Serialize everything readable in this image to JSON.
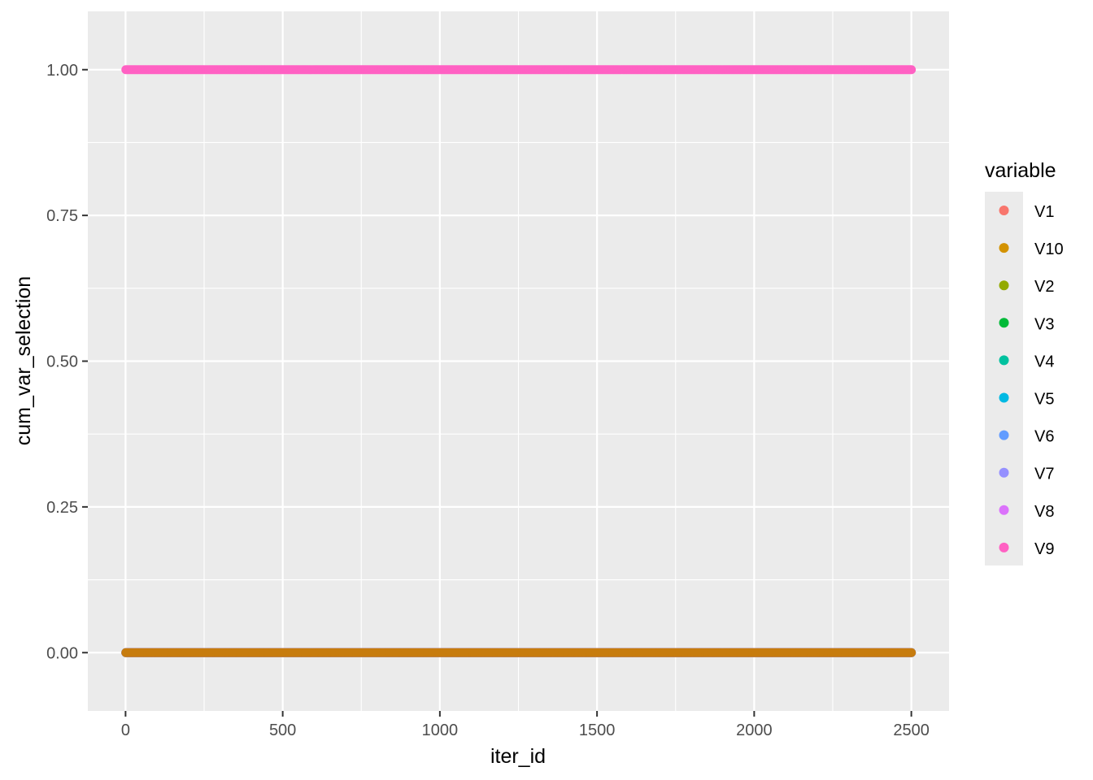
{
  "chart_data": {
    "type": "scatter",
    "title": "",
    "xlabel": "iter_id",
    "ylabel": "cum_var_selection",
    "xlim": [
      -120,
      2620
    ],
    "ylim": [
      -0.1,
      1.1
    ],
    "x_ticks": [
      0,
      500,
      1000,
      1500,
      2000,
      2500
    ],
    "x_tick_labels": [
      "0",
      "500",
      "1000",
      "1500",
      "2000",
      "2500"
    ],
    "y_ticks": [
      0,
      0.25,
      0.5,
      0.75,
      1.0
    ],
    "y_tick_labels": [
      "0.00",
      "0.25",
      "0.50",
      "0.75",
      "1.00"
    ],
    "grid": true,
    "legend_position": "right",
    "legend_title": "variable",
    "x_range": [
      1,
      2500
    ],
    "series": [
      {
        "name": "V1",
        "color": "#F8766D",
        "y": 0
      },
      {
        "name": "V10",
        "color": "#D39200",
        "y": 0
      },
      {
        "name": "V2",
        "color": "#93AA00",
        "y": 0
      },
      {
        "name": "V3",
        "color": "#00BA38",
        "y": 0
      },
      {
        "name": "V4",
        "color": "#00C19F",
        "y": 0
      },
      {
        "name": "V5",
        "color": "#00B9E3",
        "y": 0
      },
      {
        "name": "V6",
        "color": "#619CFF",
        "y": 0
      },
      {
        "name": "V7",
        "color": "#9590FF",
        "y": 0
      },
      {
        "name": "V8",
        "color": "#DB72FB",
        "y": 0
      },
      {
        "name": "V9",
        "color": "#FF61C3",
        "y": 1
      }
    ],
    "visible_bottom_color": "#C77C0E"
  }
}
